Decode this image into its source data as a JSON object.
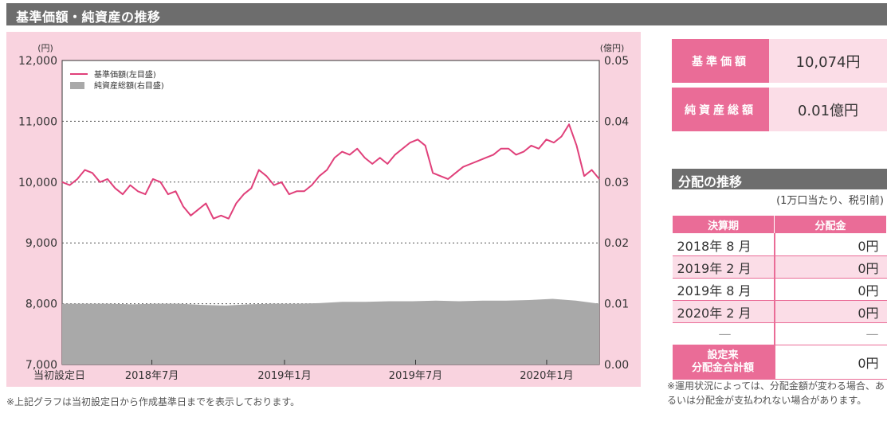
{
  "header": {
    "title": "基準価額・純資産の推移"
  },
  "chart_data": {
    "type": "line",
    "left_unit": "(円)",
    "right_unit": "(億円)",
    "left_ticks": [
      "12,000",
      "11,000",
      "10,000",
      "9,000",
      "8,000",
      "7,000"
    ],
    "right_ticks": [
      "0.05",
      "0.04",
      "0.03",
      "0.02",
      "0.01",
      "0.00"
    ],
    "ylim": [
      7000,
      12000
    ],
    "ylim_right": [
      0,
      0.05
    ],
    "x_ticks": [
      "当初設定日",
      "2018年7月",
      "2019年1月",
      "2019年7月",
      "2020年1月"
    ],
    "series": [
      {
        "name": "基準価額(左目盛)",
        "type": "line",
        "color": "#e0407a",
        "values": [
          10000,
          9950,
          10050,
          10200,
          10150,
          10000,
          10050,
          9900,
          9800,
          9950,
          9850,
          9800,
          10050,
          10000,
          9800,
          9850,
          9600,
          9450,
          9550,
          9650,
          9400,
          9450,
          9400,
          9650,
          9800,
          9900,
          10200,
          10100,
          9950,
          10000,
          9800,
          9850,
          9850,
          9950,
          10100,
          10200,
          10400,
          10500,
          10450,
          10550,
          10400,
          10300,
          10400,
          10300,
          10450,
          10550,
          10650,
          10700,
          10600,
          10150,
          10100,
          10050,
          10150,
          10250,
          10300,
          10350,
          10400,
          10450,
          10550,
          10550,
          10450,
          10500,
          10600,
          10550,
          10700,
          10650,
          10750,
          10950,
          10600,
          10100,
          10200,
          10050
        ]
      },
      {
        "name": "純資産総額(右目盛)",
        "type": "area",
        "color": "#a9a9a9",
        "values": [
          0.01,
          0.01,
          0.01,
          0.0099,
          0.01,
          0.01,
          0.0098,
          0.0097,
          0.0099,
          0.01,
          0.01,
          0.0101,
          0.0103,
          0.0103,
          0.0104,
          0.0104,
          0.0105,
          0.0104,
          0.0105,
          0.0105,
          0.0106,
          0.0108,
          0.0105,
          0.01
        ]
      }
    ]
  },
  "footnote": "※上記グラフは当初設定日から作成基準日までを表示しております。",
  "summary": {
    "nav_label": "基準価額",
    "nav_value": "10,074円",
    "assets_label": "純資産総額",
    "assets_value": "0.01億円"
  },
  "distribution": {
    "title": "分配の推移",
    "note": "(1万口当たり、税引前)",
    "col_period": "決算期",
    "col_amount": "分配金",
    "rows": [
      {
        "period": "2018年 8 月",
        "amount": "0円"
      },
      {
        "period": "2019年 2 月",
        "amount": "0円"
      },
      {
        "period": "2019年 8 月",
        "amount": "0円"
      },
      {
        "period": "2020年 2 月",
        "amount": "0円"
      },
      {
        "period": "—",
        "amount": "—"
      }
    ],
    "total_label_1": "設定来",
    "total_label_2": "分配金合計額",
    "total_value": "0円",
    "footnote": "※運用状況によっては、分配金額が変わる場合、あるいは分配金が支払われない場合があります。"
  }
}
